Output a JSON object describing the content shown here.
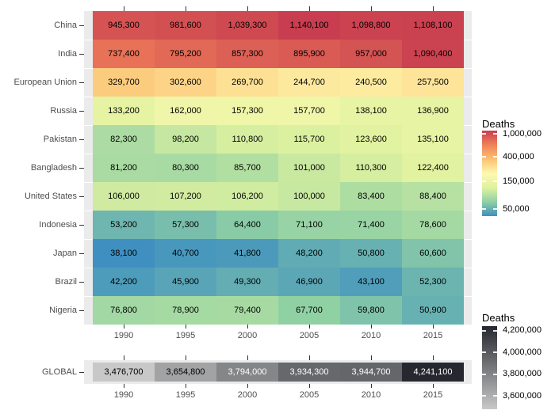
{
  "figure": {
    "background": "#ffffff",
    "panel_background": "#ebebeb",
    "axis_text_color": "#4d4d4d",
    "tick_color": "#333333",
    "cell_text_color": "#000000",
    "cell_text_color_dark_bg": "#ffffff"
  },
  "chart_data": [
    {
      "type": "heatmap",
      "name": "deaths-by-country-heatmap",
      "x_categories": [
        "1990",
        "1995",
        "2000",
        "2005",
        "2010",
        "2015"
      ],
      "y_categories": [
        "China",
        "India",
        "European Union",
        "Russia",
        "Pakistan",
        "Bangladesh",
        "United States",
        "Indonesia",
        "Japan",
        "Brazil",
        "Nigeria"
      ],
      "values": [
        [
          945300,
          981600,
          1039300,
          1140100,
          1098800,
          1108100
        ],
        [
          737400,
          795200,
          857300,
          895900,
          957000,
          1090400
        ],
        [
          329700,
          302600,
          269700,
          244700,
          240500,
          257500
        ],
        [
          133200,
          162000,
          157300,
          157700,
          138100,
          136900
        ],
        [
          82300,
          98200,
          110800,
          115700,
          123600,
          135100
        ],
        [
          81200,
          80300,
          85700,
          101000,
          110300,
          122400
        ],
        [
          106000,
          107200,
          106200,
          100000,
          83400,
          88400
        ],
        [
          53200,
          57300,
          64400,
          71100,
          71400,
          78600
        ],
        [
          38100,
          40700,
          41800,
          48200,
          50800,
          60600
        ],
        [
          42200,
          45900,
          49300,
          46900,
          43100,
          52300
        ],
        [
          76800,
          78900,
          79400,
          67700,
          59800,
          50900
        ]
      ],
      "value_format": "thousands-comma",
      "legend": {
        "title": "Deaths",
        "position": "right",
        "scale": "log10",
        "domain": [
          38100,
          1140100
        ],
        "tick_values": [
          1000000,
          400000,
          150000,
          50000
        ],
        "tick_labels": [
          "1,000,000",
          "400,000",
          "150,000",
          "50,000"
        ],
        "palette": [
          "#C83E50",
          "#F08159",
          "#FCC172",
          "#FEF9B0",
          "#DFF2A0",
          "#8FD0A4",
          "#3F90C0"
        ],
        "palette_order": "high-to-low"
      }
    },
    {
      "type": "heatmap",
      "name": "global-deaths-strip",
      "x_categories": [
        "1990",
        "1995",
        "2000",
        "2005",
        "2010",
        "2015"
      ],
      "y_categories": [
        "GLOBAL"
      ],
      "values": [
        [
          3476700,
          3654800,
          3794000,
          3934300,
          3944700,
          4241100
        ]
      ],
      "value_format": "thousands-comma",
      "legend": {
        "title": "Deaths",
        "position": "right",
        "scale": "linear",
        "domain": [
          3476700,
          4241100
        ],
        "tick_values": [
          4200000,
          4000000,
          3800000,
          3600000
        ],
        "tick_labels": [
          "4,200,000",
          "4,000,000",
          "3,800,000",
          "3,600,000"
        ],
        "palette": [
          "#C8C8C8",
          "#25282F"
        ],
        "palette_order": "low-to-high",
        "dark_text_threshold": 0.35
      }
    }
  ]
}
